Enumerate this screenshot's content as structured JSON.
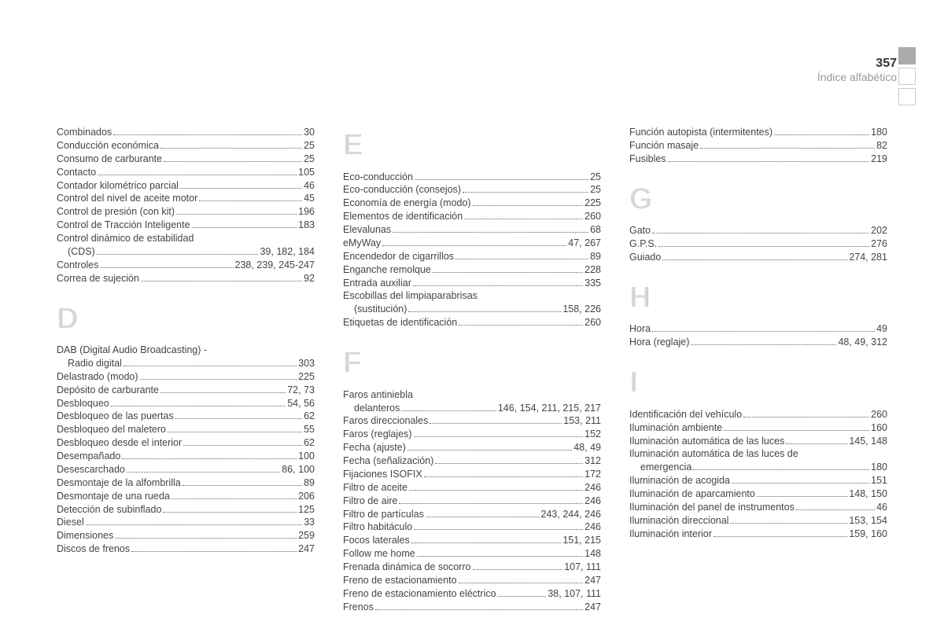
{
  "header": {
    "page_number": "357",
    "title": "Índice alfabético"
  },
  "colors": {
    "text": "#444444",
    "letter": "#d8d8d8",
    "header_gray": "#999999",
    "background": "#ffffff"
  },
  "columns": [
    {
      "sections": [
        {
          "letter": "",
          "entries": [
            {
              "label": "Combinados",
              "page": "30"
            },
            {
              "label": "Conducción económica",
              "page": "25"
            },
            {
              "label": "Consumo de carburante",
              "page": "25"
            },
            {
              "label": "Contacto",
              "page": "105"
            },
            {
              "label": "Contador kilométrico parcial",
              "page": "46"
            },
            {
              "label": "Control del nivel de aceite motor",
              "page": "45"
            },
            {
              "label": "Control de presión (con kit)",
              "page": "196"
            },
            {
              "label": "Control de Tracción Inteligente",
              "page": "183"
            },
            {
              "label": "Control dinámico de estabilidad",
              "nobreak": true
            },
            {
              "label": "(CDS)",
              "page": "39, 182, 184",
              "indent": true
            },
            {
              "label": "Controles",
              "page": "238, 239, 245-247"
            },
            {
              "label": "Correa de sujeción",
              "page": "92"
            }
          ]
        },
        {
          "letter": "D",
          "entries": [
            {
              "label": "DAB (Digital Audio Broadcasting) -",
              "nobreak": true
            },
            {
              "label": "Radio digital",
              "page": "303",
              "indent": true
            },
            {
              "label": "Delastrado (modo)",
              "page": "225"
            },
            {
              "label": "Depósito de carburante",
              "page": "72, 73"
            },
            {
              "label": "Desbloqueo",
              "page": "54, 56"
            },
            {
              "label": "Desbloqueo de las puertas",
              "page": "62"
            },
            {
              "label": "Desbloqueo del maletero",
              "page": "55"
            },
            {
              "label": "Desbloqueo desde el interior",
              "page": "62"
            },
            {
              "label": "Desempañado",
              "page": "100"
            },
            {
              "label": "Desescarchado",
              "page": "86, 100"
            },
            {
              "label": "Desmontaje de la alfombrilla",
              "page": "89"
            },
            {
              "label": "Desmontaje de una rueda",
              "page": "206"
            },
            {
              "label": "Detección de subinflado",
              "page": "125"
            },
            {
              "label": "Diesel",
              "page": "33"
            },
            {
              "label": "Dimensiones",
              "page": "259"
            },
            {
              "label": "Discos de frenos",
              "page": "247"
            }
          ]
        }
      ]
    },
    {
      "sections": [
        {
          "letter": "E",
          "first": true,
          "entries": [
            {
              "label": "Eco-conducción",
              "page": "25"
            },
            {
              "label": "Eco-conducción (consejos)",
              "page": "25"
            },
            {
              "label": "Economía de energía (modo)",
              "page": "225"
            },
            {
              "label": "Elementos de identificación",
              "page": "260"
            },
            {
              "label": "Elevalunas",
              "page": "68"
            },
            {
              "label": "eMyWay",
              "page": "47, 267"
            },
            {
              "label": "Encendedor de cigarrillos",
              "page": "89"
            },
            {
              "label": "Enganche remolque",
              "page": "228"
            },
            {
              "label": "Entrada auxiliar",
              "page": "335"
            },
            {
              "label": "Escobillas del limpiaparabrisas",
              "nobreak": true
            },
            {
              "label": "(sustitución)",
              "page": "158, 226",
              "indent": true
            },
            {
              "label": "Etiquetas de identificación",
              "page": "260"
            }
          ]
        },
        {
          "letter": "F",
          "entries": [
            {
              "label": "Faros antiniebla",
              "nobreak": true
            },
            {
              "label": "delanteros",
              "page": "146, 154, 211, 215, 217",
              "indent": true
            },
            {
              "label": "Faros direccionales",
              "page": "153, 211"
            },
            {
              "label": "Faros (reglajes)",
              "page": "152"
            },
            {
              "label": "Fecha (ajuste)",
              "page": "48, 49"
            },
            {
              "label": "Fecha (señalización)",
              "page": "312"
            },
            {
              "label": "Fijaciones ISOFIX",
              "page": "172"
            },
            {
              "label": "Filtro de aceite",
              "page": "246"
            },
            {
              "label": "Filtro de aire",
              "page": "246"
            },
            {
              "label": "Filtro de partículas",
              "page": "243, 244, 246"
            },
            {
              "label": "Filtro habitáculo",
              "page": "246"
            },
            {
              "label": "Focos laterales",
              "page": "151, 215"
            },
            {
              "label": "Follow me home",
              "page": "148"
            },
            {
              "label": "Frenada dinámica de socorro",
              "page": "107, 111"
            },
            {
              "label": "Freno de estacionamiento",
              "page": "247"
            },
            {
              "label": "Freno de estacionamiento eléctrico",
              "page": "38, 107, 111"
            },
            {
              "label": "Frenos",
              "page": "247"
            }
          ]
        }
      ]
    },
    {
      "sections": [
        {
          "letter": "",
          "entries": [
            {
              "label": "Función autopista (intermitentes)",
              "page": "180"
            },
            {
              "label": "Función masaje",
              "page": "82"
            },
            {
              "label": "Fusibles",
              "page": "219"
            }
          ]
        },
        {
          "letter": "G",
          "entries": [
            {
              "label": "Gato",
              "page": "202"
            },
            {
              "label": "G.P.S.",
              "page": "276"
            },
            {
              "label": "Guiado",
              "page": "274, 281"
            }
          ]
        },
        {
          "letter": "H",
          "entries": [
            {
              "label": "Hora",
              "page": "49"
            },
            {
              "label": "Hora (reglaje)",
              "page": "48, 49, 312"
            }
          ]
        },
        {
          "letter": "I",
          "entries": [
            {
              "label": "Identificación del vehículo",
              "page": "260"
            },
            {
              "label": "Iluminación ambiente",
              "page": "160"
            },
            {
              "label": "Iluminación automática de las luces",
              "page": "145, 148"
            },
            {
              "label": "Iluminación automática de las luces de",
              "nobreak": true
            },
            {
              "label": "emergencia",
              "page": "180",
              "indent": true
            },
            {
              "label": "Iluminación de acogida",
              "page": "151"
            },
            {
              "label": "Iluminación de aparcamiento",
              "page": "148, 150"
            },
            {
              "label": "Iluminación del panel de instrumentos",
              "page": "46"
            },
            {
              "label": "Iluminación direccional",
              "page": "153, 154"
            },
            {
              "label": "Iluminación interior",
              "page": "159, 160"
            }
          ]
        }
      ]
    }
  ]
}
